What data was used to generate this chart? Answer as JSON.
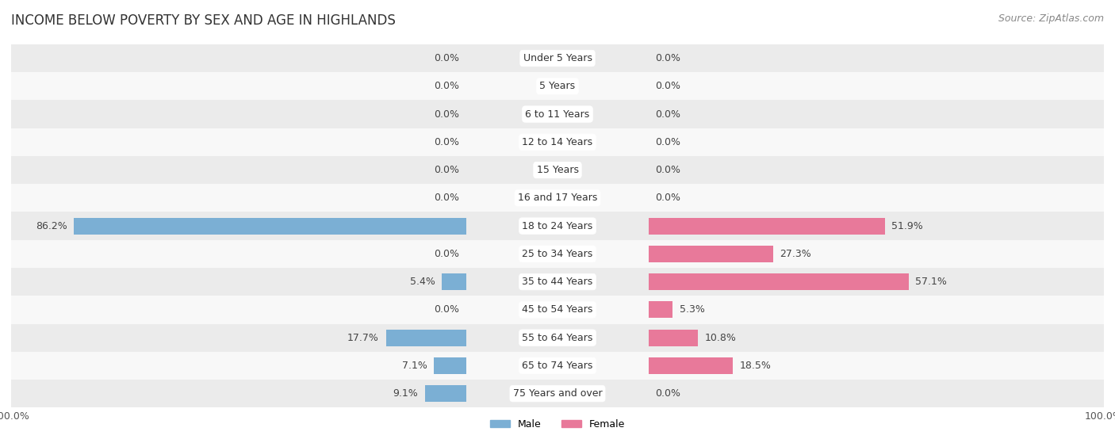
{
  "title": "INCOME BELOW POVERTY BY SEX AND AGE IN HIGHLANDS",
  "source": "Source: ZipAtlas.com",
  "categories": [
    "Under 5 Years",
    "5 Years",
    "6 to 11 Years",
    "12 to 14 Years",
    "15 Years",
    "16 and 17 Years",
    "18 to 24 Years",
    "25 to 34 Years",
    "35 to 44 Years",
    "45 to 54 Years",
    "55 to 64 Years",
    "65 to 74 Years",
    "75 Years and over"
  ],
  "male": [
    0.0,
    0.0,
    0.0,
    0.0,
    0.0,
    0.0,
    86.2,
    0.0,
    5.4,
    0.0,
    17.7,
    7.1,
    9.1
  ],
  "female": [
    0.0,
    0.0,
    0.0,
    0.0,
    0.0,
    0.0,
    51.9,
    27.3,
    57.1,
    5.3,
    10.8,
    18.5,
    0.0
  ],
  "male_color": "#7bafd4",
  "female_color": "#e8799a",
  "male_label": "Male",
  "female_label": "Female",
  "row_bg_odd": "#ebebeb",
  "row_bg_even": "#f8f8f8",
  "bar_height": 0.6,
  "xlim": 100.0,
  "title_fontsize": 12,
  "label_fontsize": 9,
  "cat_fontsize": 9,
  "tick_fontsize": 9,
  "source_fontsize": 9
}
